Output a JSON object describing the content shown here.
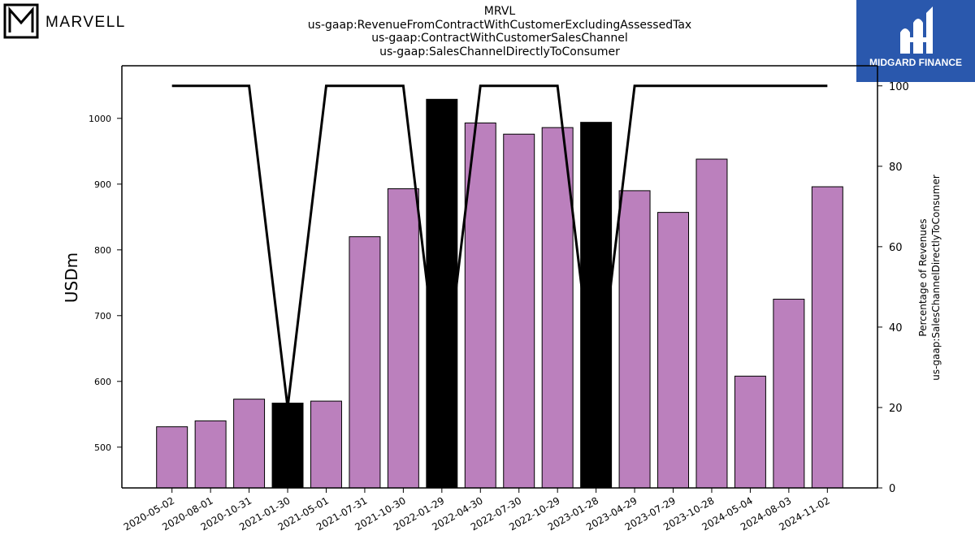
{
  "header": {
    "company_logo_text": "MARVELL",
    "brand_logo_text": "MIDGARD FINANCE",
    "title_lines": [
      "MRVL",
      "us-gaap:RevenueFromContractWithCustomerExcludingAssessedTax",
      "us-gaap:ContractWithCustomerSalesChannel",
      "us-gaap:SalesChannelDirectlyToConsumer"
    ]
  },
  "colors": {
    "bar_purple": "#bb80bd",
    "bar_black": "#000000",
    "line": "#000000",
    "brand_blue": "#2a58ad"
  },
  "chart_data": {
    "type": "bar",
    "title": "MRVL us-gaap:RevenueFromContractWithCustomerExcludingAssessedTax us-gaap:ContractWithCustomerSalesChannel us-gaap:SalesChannelDirectlyToConsumer",
    "categories": [
      "2020-05-02",
      "2020-08-01",
      "2020-10-31",
      "2021-01-30",
      "2021-05-01",
      "2021-07-31",
      "2021-10-30",
      "2022-01-29",
      "2022-04-30",
      "2022-07-30",
      "2022-10-29",
      "2023-01-28",
      "2023-04-29",
      "2023-07-29",
      "2023-10-28",
      "2024-05-04",
      "2024-08-03",
      "2024-11-02"
    ],
    "values": [
      531,
      540,
      573,
      567,
      570,
      820,
      893,
      1029,
      993,
      976,
      986,
      994,
      890,
      857,
      938,
      608,
      725,
      896
    ],
    "bar_colors": [
      "purple",
      "purple",
      "purple",
      "black",
      "purple",
      "purple",
      "purple",
      "black",
      "purple",
      "purple",
      "purple",
      "black",
      "purple",
      "purple",
      "purple",
      "purple",
      "purple",
      "purple"
    ],
    "line_series": {
      "values": [
        100,
        100,
        100,
        20,
        100,
        100,
        100,
        20,
        100,
        100,
        100,
        20,
        100,
        100,
        100,
        100,
        100,
        100
      ]
    },
    "ylabel": "USDm",
    "ylabel_right": [
      "Percentage of Revenues",
      "us-gaap:SalesChannelDirectlyToConsumer"
    ],
    "ylim": [
      438,
      1080
    ],
    "ylim_right": [
      0,
      105
    ],
    "yticks": [
      500,
      600,
      700,
      800,
      900,
      1000
    ],
    "yticks_right": [
      0,
      20,
      40,
      60,
      80,
      100
    ],
    "grid": false
  }
}
